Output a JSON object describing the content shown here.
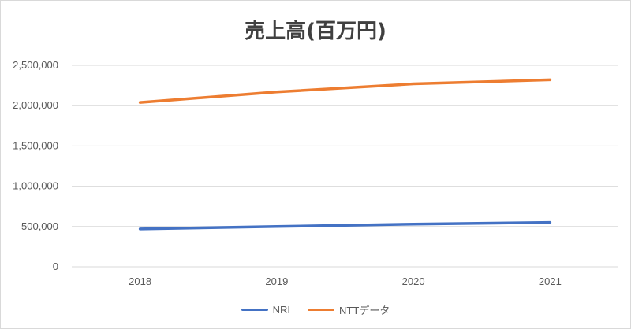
{
  "chart_data": {
    "type": "line",
    "title": "売上高(百万円)",
    "xlabel": "",
    "ylabel": "",
    "categories": [
      "2018",
      "2019",
      "2020",
      "2021"
    ],
    "ylim": [
      0,
      2500000
    ],
    "yticks": [
      0,
      500000,
      1000000,
      1500000,
      2000000,
      2500000
    ],
    "ytick_labels": [
      "0",
      "500,000",
      "1,000,000",
      "1,500,000",
      "2,000,000",
      "2,500,000"
    ],
    "grid": true,
    "legend": "bottom",
    "series": [
      {
        "name": "NRI",
        "color": "#4472c4",
        "values": [
          470000,
          500000,
          530000,
          550000
        ]
      },
      {
        "name": "NTTデータ",
        "color": "#ed7d31",
        "values": [
          2040000,
          2170000,
          2270000,
          2320000
        ]
      }
    ]
  }
}
